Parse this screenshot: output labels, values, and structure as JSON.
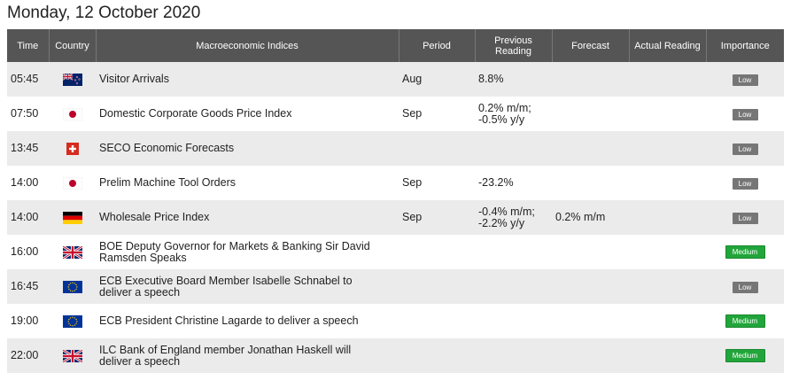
{
  "title": "Monday, 12 October 2020",
  "headers": {
    "time": "Time",
    "country": "Country",
    "indices": "Macroeconomic Indices",
    "period": "Period",
    "previous_line1": "Previous",
    "previous_line2": "Reading",
    "forecast": "Forecast",
    "actual": "Actual Reading",
    "importance": "Importance"
  },
  "rows": [
    {
      "time": "05:45",
      "flag": "nz-flag-icon",
      "country_code": "nz",
      "indicator": "Visitor Arrivals",
      "period": "Aug",
      "previous": "8.8%",
      "forecast": "",
      "actual": "",
      "importance": "Low",
      "level": "low"
    },
    {
      "time": "07:50",
      "flag": "jp-flag-icon",
      "country_code": "jp",
      "indicator": "Domestic Corporate Goods Price Index",
      "period": "Sep",
      "previous": "0.2% m/m;\n-0.5% y/y",
      "forecast": "",
      "actual": "",
      "importance": "Low",
      "level": "low"
    },
    {
      "time": "13:45",
      "flag": "ch-flag-icon",
      "country_code": "ch",
      "indicator": "SECO Economic Forecasts",
      "period": "",
      "previous": "",
      "forecast": "",
      "actual": "",
      "importance": "Low",
      "level": "low"
    },
    {
      "time": "14:00",
      "flag": "jp-flag-icon",
      "country_code": "jp",
      "indicator": "Prelim Machine Tool Orders",
      "period": "Sep",
      "previous": "-23.2%",
      "forecast": "",
      "actual": "",
      "importance": "Low",
      "level": "low"
    },
    {
      "time": "14:00",
      "flag": "de-flag-icon",
      "country_code": "de",
      "indicator": "Wholesale Price Index",
      "period": "Sep",
      "previous": "-0.4% m/m;\n-2.2% y/y",
      "forecast": "0.2% m/m",
      "actual": "",
      "importance": "Low",
      "level": "low"
    },
    {
      "time": "16:00",
      "flag": "gb-flag-icon",
      "country_code": "gb",
      "indicator": "BOE Deputy Governor for Markets & Banking Sir David\nRamsden Speaks",
      "period": "",
      "previous": "",
      "forecast": "",
      "actual": "",
      "importance": "Medium",
      "level": "medium"
    },
    {
      "time": "16:45",
      "flag": "eu-flag-icon",
      "country_code": "eu",
      "indicator": "ECB Executive Board Member Isabelle Schnabel to\ndeliver a speech",
      "period": "",
      "previous": "",
      "forecast": "",
      "actual": "",
      "importance": "Low",
      "level": "low"
    },
    {
      "time": "19:00",
      "flag": "eu-flag-icon",
      "country_code": "eu",
      "indicator": "ECB President Christine Lagarde to deliver a speech",
      "period": "",
      "previous": "",
      "forecast": "",
      "actual": "",
      "importance": "Medium",
      "level": "medium"
    },
    {
      "time": "22:00",
      "flag": "gb-flag-icon",
      "country_code": "gb",
      "indicator": "ILC Bank of England member Jonathan Haskell will\ndeliver a speech",
      "period": "",
      "previous": "",
      "forecast": "",
      "actual": "",
      "importance": "Medium",
      "level": "medium"
    }
  ],
  "colors": {
    "header_bg": "#555555",
    "row_alt": "#ebebeb",
    "low_badge": "#767676",
    "medium_badge": "#22a53b"
  }
}
